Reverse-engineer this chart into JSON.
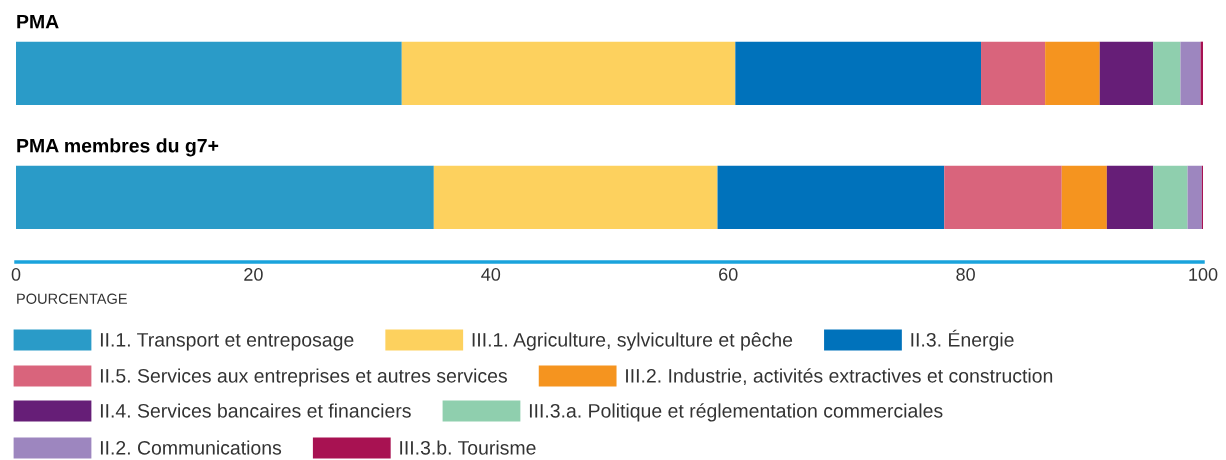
{
  "chart_data": {
    "type": "bar",
    "orientation": "horizontal",
    "stacked": true,
    "categories": [
      "PMA",
      "PMA membres du g7+"
    ],
    "xlabel": "POURCENTAGE",
    "xlim": [
      0,
      100
    ],
    "xticks": [
      0,
      20,
      40,
      60,
      80,
      100
    ],
    "grid": false,
    "legend": "bottom",
    "series": [
      {
        "name": "II.1. Transport et entreposage",
        "color": "#2a9bc8",
        "values": [
          32.5,
          35.2
        ]
      },
      {
        "name": "III.1. Agriculture, sylviculture et pêche",
        "color": "#fdd15e",
        "values": [
          28.1,
          23.9
        ]
      },
      {
        "name": "II.3. Énergie",
        "color": "#0072bb",
        "values": [
          20.7,
          19.1
        ]
      },
      {
        "name": "II.5. Services aux entreprises et autres services",
        "color": "#d9647c",
        "values": [
          5.4,
          9.9
        ]
      },
      {
        "name": "III.2. Industrie, activités extractives et construction",
        "color": "#f5941f",
        "values": [
          4.6,
          3.8
        ]
      },
      {
        "name": "II.4. Services bancaires et financiers",
        "color": "#661e77",
        "values": [
          4.5,
          3.9
        ]
      },
      {
        "name": "III.3.a. Politique et réglementation commerciales",
        "color": "#8fcfae",
        "values": [
          2.3,
          2.9
        ]
      },
      {
        "name": "II.2. Communications",
        "color": "#9d86bf",
        "values": [
          1.7,
          1.2
        ]
      },
      {
        "name": "III.3.b. Tourisme",
        "color": "#a81252",
        "values": [
          0.2,
          0.1
        ]
      }
    ]
  }
}
